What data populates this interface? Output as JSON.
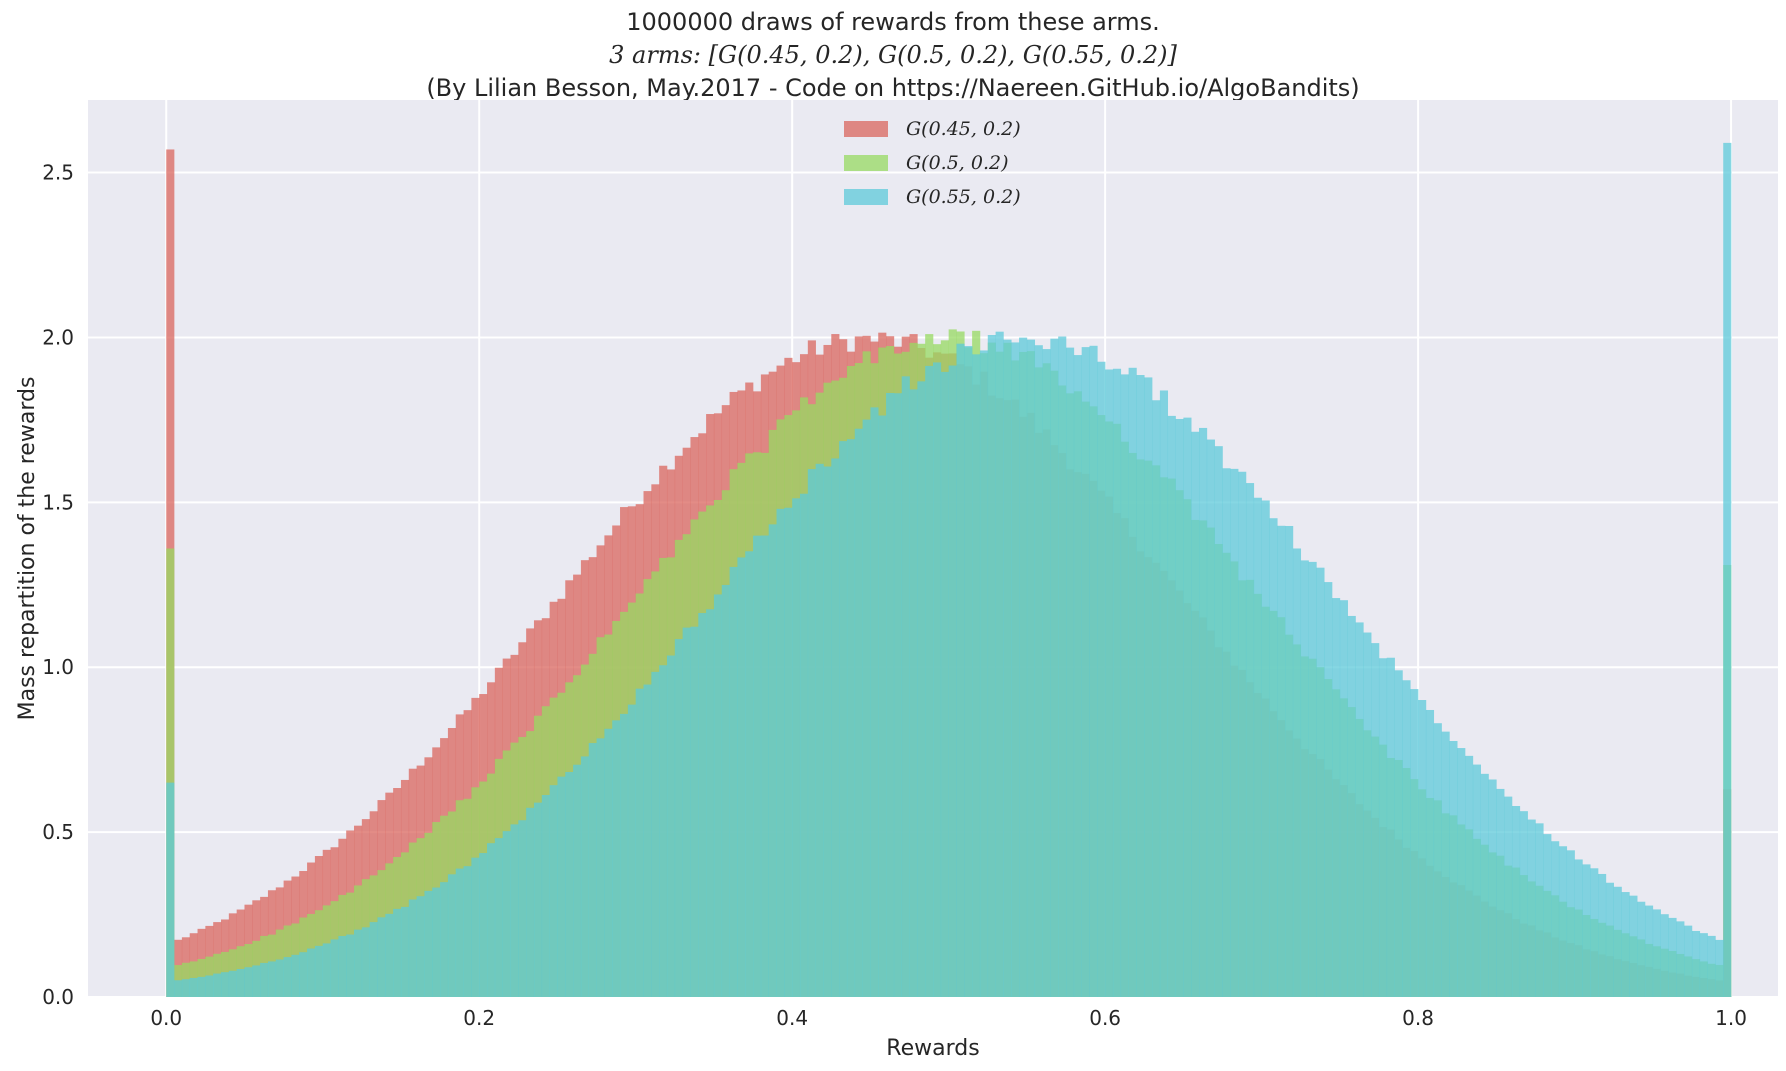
{
  "chart_data": {
    "type": "histogram",
    "title": [
      "1000000 draws of rewards from these arms.",
      "3 arms: [G(0.45, 0.2), G(0.5, 0.2), G(0.55, 0.2)]",
      "(By Lilian Besson, May.2017 - Code on https://Naereen.GitHub.io/AlgoBandits)"
    ],
    "xlabel": "Rewards",
    "ylabel": "Mass repartition of the rewards",
    "xlim": [
      -0.05,
      1.03
    ],
    "ylim": [
      0,
      2.72
    ],
    "xticks": [
      "0.0",
      "0.2",
      "0.4",
      "0.6",
      "0.8",
      "1.0"
    ],
    "yticks": [
      "0.0",
      "0.5",
      "1.0",
      "1.5",
      "2.0",
      "2.5"
    ],
    "grid": true,
    "legend_position": "top-center",
    "bins": 200,
    "range": [
      0,
      1
    ],
    "series": [
      {
        "name": "G(0.45, 0.2)",
        "mean": 0.45,
        "std": 0.2,
        "mass_at_0": 2.57,
        "mass_at_1": 0.63,
        "color": "#d9655e",
        "alpha": 0.75
      },
      {
        "name": "G(0.5, 0.2)",
        "mean": 0.5,
        "std": 0.2,
        "mass_at_0": 1.36,
        "mass_at_1": 1.31,
        "color": "#97d961",
        "alpha": 0.75
      },
      {
        "name": "G(0.55, 0.2)",
        "mean": 0.55,
        "std": 0.2,
        "mass_at_0": 0.65,
        "mass_at_1": 2.59,
        "color": "#5ecad9",
        "alpha": 0.75
      }
    ],
    "colors": {
      "background": "#eaeaf2",
      "grid": "#ffffff",
      "text": "#262626"
    }
  }
}
